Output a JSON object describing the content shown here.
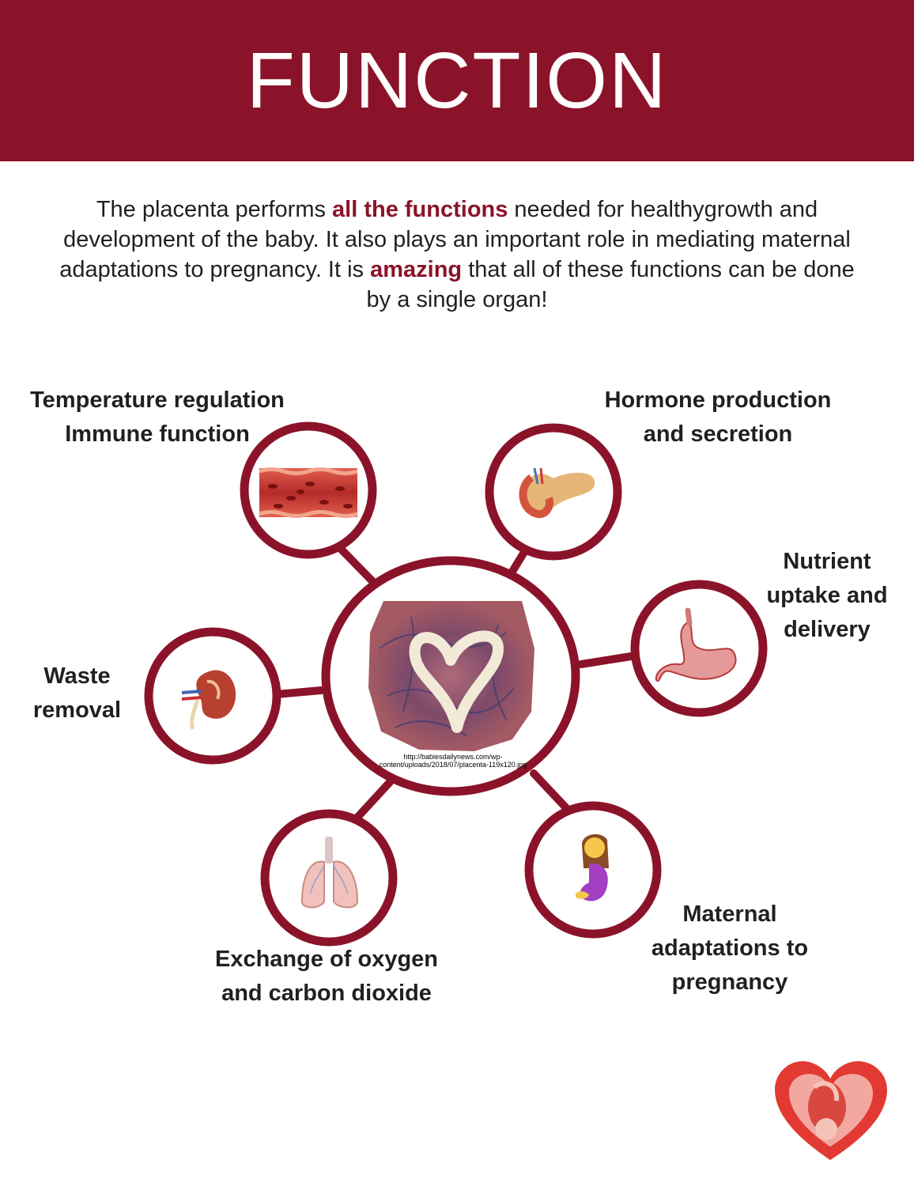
{
  "header": {
    "title": "FUNCTION"
  },
  "intro": {
    "p1": "The placenta performs ",
    "h1": "all the functions",
    "p2": " needed for healthygrowth and development of the baby. It also plays an important role in mediating maternal adaptations to pregnancy. It is ",
    "h2": "amazing",
    "p3": " that all of these functions can be done by a single organ!"
  },
  "center": {
    "icon": "placenta-photo-icon",
    "credit": "http://babiesdailynews.com/wp-content/uploads/2018/07/placenta-119x120.jpg"
  },
  "functions": [
    {
      "icon": "blood-vessel-icon",
      "label_l1": "Temperature regulation",
      "label_l2": "Immune function"
    },
    {
      "icon": "pancreas-icon",
      "label_l1": "Hormone production",
      "label_l2": "and secretion"
    },
    {
      "icon": "stomach-icon",
      "label_l1": "Nutrient",
      "label_l2": "uptake and",
      "label_l3": "delivery"
    },
    {
      "icon": "kidney-icon",
      "label_l1": "Waste",
      "label_l2": "removal"
    },
    {
      "icon": "lungs-icon",
      "label_l1": "Exchange of oxygen",
      "label_l2": "and carbon dioxide"
    },
    {
      "icon": "pregnant-woman-icon",
      "label_l1": "Maternal",
      "label_l2": "adaptations to",
      "label_l3": "pregnancy"
    }
  ],
  "logo": {
    "icon": "heart-fetus-logo-icon"
  },
  "colors": {
    "accent": "#8b1329",
    "text": "#231f20",
    "background": "#ffffff"
  }
}
